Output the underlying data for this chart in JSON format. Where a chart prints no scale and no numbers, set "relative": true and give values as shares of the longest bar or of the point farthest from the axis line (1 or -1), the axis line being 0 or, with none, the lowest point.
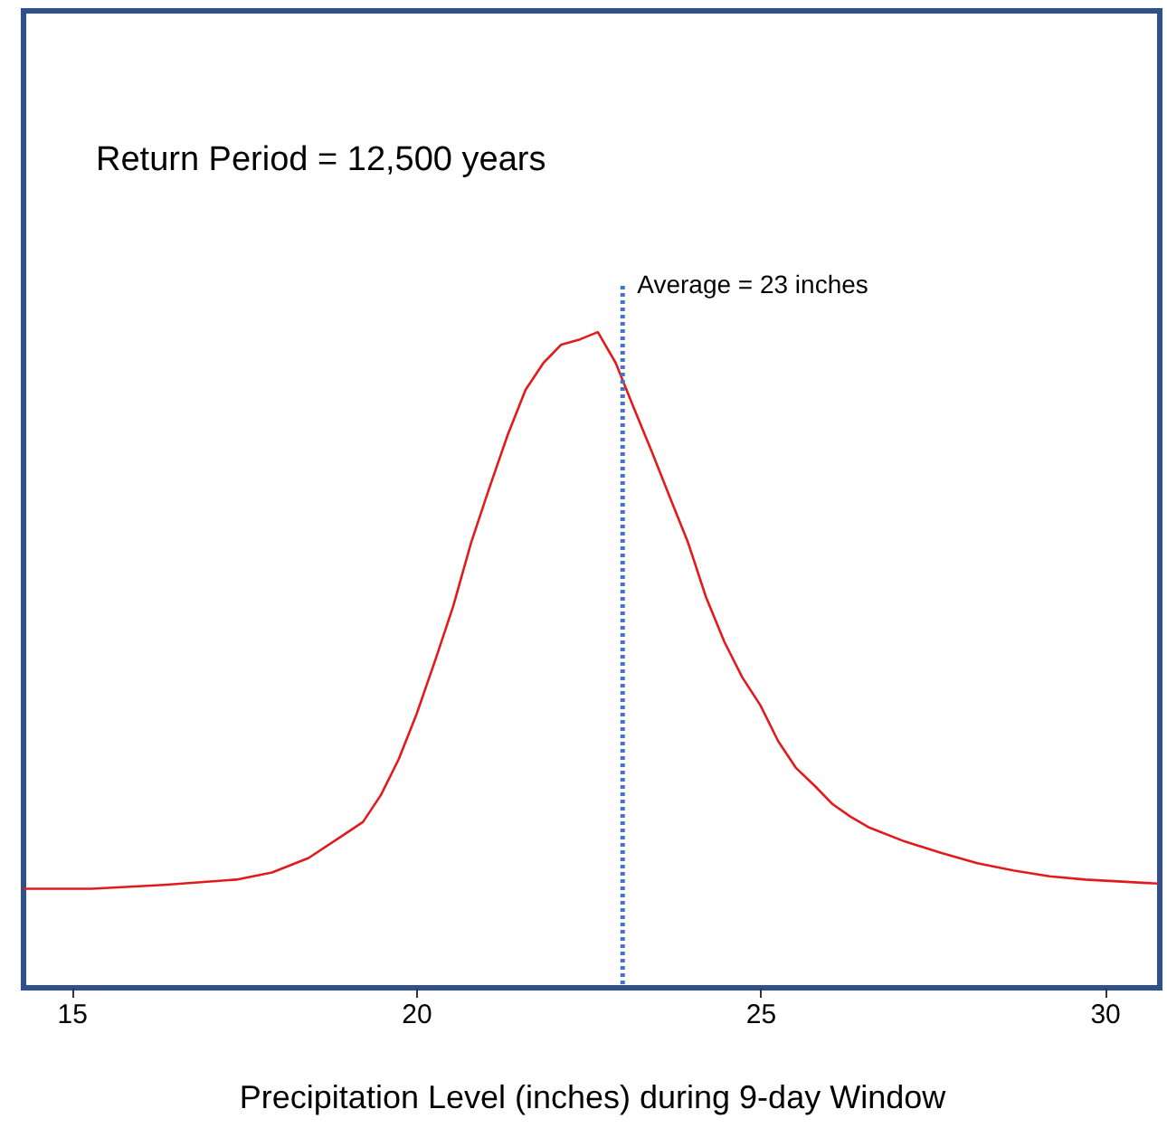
{
  "chart_data": {
    "type": "line",
    "xlabel": "Precipitation Level (inches) during 9-day Window",
    "relative": true,
    "xlim": [
      14.3,
      30.8
    ],
    "xticks": [
      15,
      20,
      25,
      30
    ],
    "x": [
      14.3,
      15.29,
      16.34,
      17.39,
      17.91,
      18.44,
      18.96,
      19.23,
      19.49,
      19.75,
      20.01,
      20.28,
      20.54,
      20.8,
      21.06,
      21.33,
      21.59,
      21.85,
      22.11,
      22.38,
      22.64,
      22.9,
      23.16,
      23.43,
      23.69,
      23.95,
      24.21,
      24.48,
      24.74,
      25.0,
      25.26,
      25.52,
      25.79,
      26.05,
      26.31,
      26.57,
      27.1,
      27.62,
      28.15,
      28.67,
      29.2,
      29.72,
      30.77
    ],
    "series": [
      {
        "color": "#e31a1c",
        "values": [
          0.151,
          0.151,
          0.157,
          0.165,
          0.176,
          0.198,
          0.234,
          0.253,
          0.294,
          0.349,
          0.418,
          0.5,
          0.582,
          0.679,
          0.761,
          0.843,
          0.912,
          0.953,
          0.981,
          0.989,
          1,
          0.953,
          0.885,
          0.816,
          0.747,
          0.679,
          0.596,
          0.527,
          0.473,
          0.431,
          0.376,
          0.335,
          0.308,
          0.28,
          0.261,
          0.245,
          0.223,
          0.206,
          0.19,
          0.179,
          0.17,
          0.165,
          0.159
        ]
      }
    ],
    "ref_lines": [
      {
        "axis": "x",
        "value": 23,
        "label": "Average = 23 inches",
        "color": "#4472c4",
        "line_style": "dotted"
      }
    ],
    "annotations": [
      "Return Period = 12,500 years"
    ]
  }
}
